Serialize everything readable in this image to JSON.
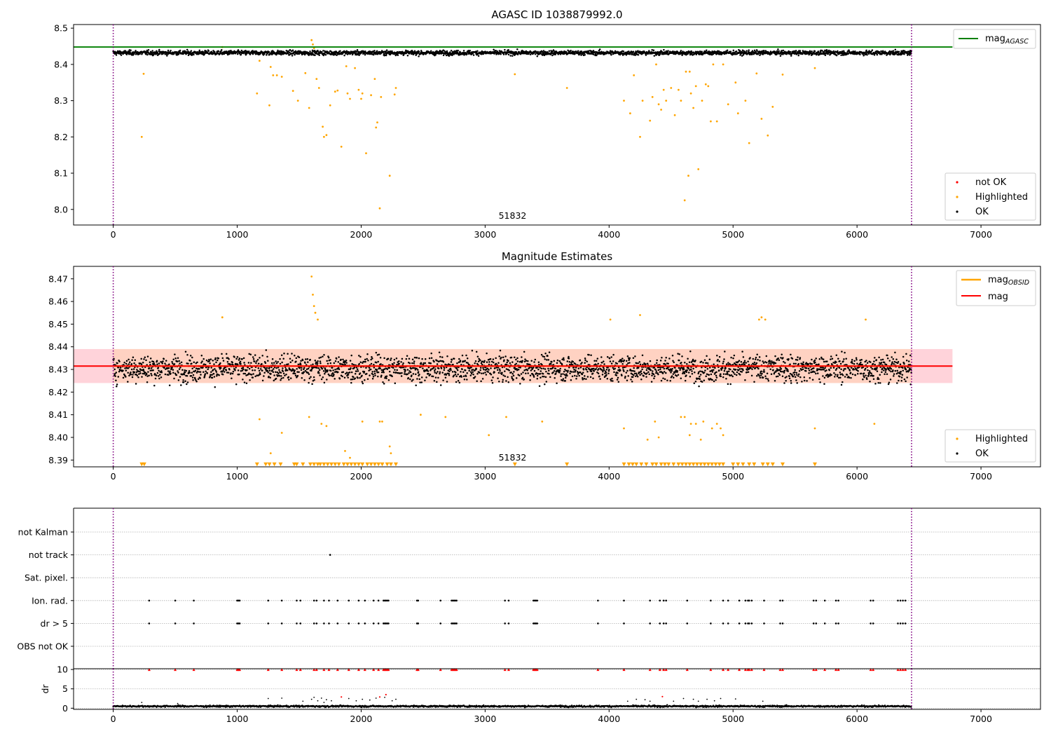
{
  "chart_data": [
    {
      "type": "scatter",
      "title": "AGASC ID 1038879992.0",
      "xlim": [
        -320,
        7480
      ],
      "ylim": [
        7.957,
        8.51
      ],
      "x_ticks": [
        0,
        1000,
        2000,
        3000,
        4000,
        5000,
        6000,
        7000
      ],
      "y_ticks": [
        8.0,
        8.1,
        8.2,
        8.3,
        8.4,
        8.5
      ],
      "obsid_label": "51832",
      "obsid_boundaries": [
        0,
        6440
      ],
      "reference_line": {
        "name": "mag_AGASC",
        "legend_base": "mag",
        "legend_sub": "AGASC",
        "value": 8.448,
        "x_range": [
          -320,
          6770
        ],
        "color": "#008000"
      },
      "series": [
        {
          "name": "not OK",
          "color": "#ff0000",
          "values": []
        },
        {
          "name": "Highlighted",
          "color": "#ffa500",
          "x": [
            230,
            245,
            880,
            1160,
            1180,
            1260,
            1270,
            1290,
            1320,
            1360,
            1450,
            1490,
            1550,
            1580,
            1600,
            1610,
            1620,
            1640,
            1660,
            1690,
            1700,
            1720,
            1750,
            1790,
            1810,
            1840,
            1880,
            1890,
            1910,
            1950,
            1980,
            2000,
            2010,
            2040,
            2080,
            2110,
            2120,
            2130,
            2150,
            2160,
            2230,
            2270,
            2280,
            3240,
            3660,
            4120,
            4170,
            4200,
            4250,
            4270,
            4330,
            4350,
            4380,
            4400,
            4420,
            4440,
            4460,
            4500,
            4530,
            4560,
            4580,
            4610,
            4620,
            4640,
            4650,
            4660,
            4680,
            4700,
            4720,
            4750,
            4780,
            4800,
            4820,
            4840,
            4870,
            4920,
            4960,
            5020,
            5040,
            5100,
            5130,
            5190,
            5230,
            5280,
            5320,
            5400,
            5660
          ],
          "y": [
            8.2,
            8.374,
            8.448,
            8.32,
            8.41,
            8.287,
            8.393,
            8.37,
            8.37,
            8.366,
            8.327,
            8.3,
            8.376,
            8.28,
            8.467,
            8.455,
            8.445,
            8.36,
            8.335,
            8.228,
            8.2,
            8.205,
            8.287,
            8.325,
            8.328,
            8.173,
            8.395,
            8.32,
            8.305,
            8.39,
            8.33,
            8.305,
            8.32,
            8.155,
            8.315,
            8.36,
            8.226,
            8.24,
            8.003,
            8.31,
            8.093,
            8.317,
            8.335,
            8.373,
            8.335,
            8.3,
            8.265,
            8.37,
            8.2,
            8.3,
            8.245,
            8.31,
            8.4,
            8.29,
            8.275,
            8.33,
            8.3,
            8.335,
            8.26,
            8.33,
            8.3,
            8.025,
            8.38,
            8.093,
            8.38,
            8.32,
            8.28,
            8.34,
            8.111,
            8.3,
            8.345,
            8.34,
            8.243,
            8.4,
            8.243,
            8.4,
            8.29,
            8.35,
            8.265,
            8.3,
            8.183,
            8.375,
            8.25,
            8.204,
            8.283,
            8.372,
            8.39
          ]
        },
        {
          "name": "OK",
          "color": "#000000",
          "band": {
            "center": 8.432,
            "spread": 0.008
          }
        }
      ],
      "legend_order": [
        "not OK",
        "Highlighted",
        "OK"
      ],
      "legend_placement": "lower-right"
    },
    {
      "type": "scatter",
      "title": "Magnitude Estimates",
      "xlim": [
        -320,
        7480
      ],
      "ylim": [
        8.387,
        8.4755
      ],
      "x_ticks": [
        0,
        1000,
        2000,
        3000,
        4000,
        5000,
        6000,
        7000
      ],
      "y_ticks": [
        8.39,
        8.4,
        8.41,
        8.42,
        8.43,
        8.44,
        8.45,
        8.46,
        8.47
      ],
      "obsid_label": "51832",
      "obsid_boundaries": [
        0,
        6440
      ],
      "lines": [
        {
          "name": "mag_OBSID",
          "legend_base": "mag",
          "legend_sub": "OBSID",
          "color": "#ffa500",
          "value": 8.4315,
          "x_range": [
            0,
            6440
          ]
        },
        {
          "name": "mag",
          "legend_base": "mag",
          "legend_sub": "",
          "color": "#ff0000",
          "value": 8.4315,
          "x_range": [
            -320,
            6770
          ]
        }
      ],
      "bands": [
        {
          "color": "#ffb6c1",
          "lower": 8.424,
          "upper": 8.439
        },
        {
          "color": "#ffd2b3",
          "lower": 8.424,
          "upper": 8.439
        }
      ],
      "series": [
        {
          "name": "Highlighted",
          "color": "#ffa500",
          "x": [
            880,
            1180,
            1270,
            1360,
            1580,
            1600,
            1610,
            1620,
            1630,
            1650,
            1680,
            1720,
            1870,
            1910,
            2010,
            2150,
            2170,
            2230,
            2240,
            2480,
            2680,
            3030,
            3170,
            3460,
            4010,
            4120,
            4250,
            4310,
            4370,
            4400,
            4580,
            4610,
            4650,
            4660,
            4700,
            4740,
            4760,
            4830,
            4870,
            4900,
            4920,
            5210,
            5230,
            5260,
            5660,
            6070,
            6140
          ],
          "y": [
            8.453,
            8.408,
            8.393,
            8.402,
            8.409,
            8.471,
            8.463,
            8.458,
            8.455,
            8.452,
            8.406,
            8.405,
            8.394,
            8.391,
            8.407,
            8.407,
            8.407,
            8.396,
            8.393,
            8.41,
            8.409,
            8.401,
            8.409,
            8.407,
            8.452,
            8.404,
            8.454,
            8.399,
            8.407,
            8.4,
            8.409,
            8.409,
            8.401,
            8.406,
            8.406,
            8.399,
            8.407,
            8.404,
            8.406,
            8.404,
            8.401,
            8.452,
            8.453,
            8.452,
            8.404,
            8.452,
            8.406
          ],
          "clipped_markers_x": [
            230,
            250,
            1160,
            1230,
            1260,
            1300,
            1350,
            1460,
            1480,
            1530,
            1590,
            1620,
            1650,
            1670,
            1700,
            1730,
            1760,
            1790,
            1820,
            1860,
            1890,
            1920,
            1950,
            1980,
            2010,
            2050,
            2080,
            2110,
            2140,
            2170,
            2210,
            2240,
            2280,
            3240,
            3660,
            4120,
            4160,
            4190,
            4220,
            4260,
            4300,
            4350,
            4380,
            4420,
            4450,
            4480,
            4520,
            4560,
            4590,
            4620,
            4650,
            4680,
            4710,
            4740,
            4770,
            4800,
            4830,
            4860,
            4890,
            4920,
            5000,
            5040,
            5080,
            5130,
            5170,
            5240,
            5280,
            5320,
            5400,
            5660
          ]
        },
        {
          "name": "OK",
          "color": "#000000",
          "band": {
            "center": 8.4305,
            "spread": 0.0075
          }
        }
      ],
      "legend_order": [
        "Highlighted",
        "OK"
      ],
      "legend_placement": "lower-right"
    },
    {
      "type": "scatter",
      "title": "",
      "xlim": [
        -320,
        7480
      ],
      "x_ticks": [
        0,
        1000,
        2000,
        3000,
        4000,
        5000,
        6000,
        7000
      ],
      "obsid_boundaries": [
        0,
        6440
      ],
      "flag_rows": [
        "not Kalman",
        "not track",
        "Sat. pixel.",
        "Ion. rad.",
        "dr > 5",
        "OBS not OK"
      ],
      "flag_events": {
        "not track": [
          1750
        ],
        "Ion. rad.": [
          290,
          500,
          650,
          1000,
          1010,
          1020,
          1250,
          1360,
          1480,
          1510,
          1620,
          1640,
          1700,
          1740,
          1810,
          1900,
          1980,
          2030,
          2100,
          2140,
          2180,
          2190,
          2200,
          2210,
          2220,
          2450,
          2460,
          2640,
          2730,
          2740,
          2750,
          2760,
          2770,
          3160,
          3190,
          3390,
          3400,
          3410,
          3420,
          3910,
          4120,
          4330,
          4410,
          4440,
          4460,
          4630,
          4820,
          4920,
          4960,
          5050,
          5100,
          5120,
          5130,
          5150,
          5250,
          5380,
          5400,
          5650,
          5670,
          5740,
          5830,
          5850,
          6110,
          6130,
          6330,
          6350,
          6370,
          6390
        ],
        "dr > 5": [
          290,
          500,
          650,
          1000,
          1010,
          1020,
          1250,
          1360,
          1480,
          1510,
          1620,
          1640,
          1700,
          1740,
          1810,
          1900,
          1980,
          2030,
          2100,
          2140,
          2180,
          2190,
          2200,
          2210,
          2220,
          2450,
          2460,
          2640,
          2730,
          2740,
          2750,
          2760,
          2770,
          3160,
          3190,
          3390,
          3400,
          3410,
          3420,
          3910,
          4120,
          4330,
          4410,
          4440,
          4460,
          4630,
          4820,
          4920,
          4960,
          5050,
          5100,
          5120,
          5130,
          5150,
          5250,
          5380,
          5400,
          5650,
          5670,
          5740,
          5830,
          5850,
          6110,
          6130,
          6330,
          6350,
          6370,
          6390
        ]
      }
    },
    {
      "type": "scatter",
      "title": "",
      "ylabel": "dr",
      "xlim": [
        -320,
        7480
      ],
      "ylim": [
        -0.3,
        10.2
      ],
      "x_ticks": [
        0,
        1000,
        2000,
        3000,
        4000,
        5000,
        6000,
        7000
      ],
      "y_ticks": [
        0,
        5,
        10
      ],
      "obsid_boundaries": [
        0,
        6440
      ],
      "clipped_markers": {
        "color": "#ff0000",
        "y": 10,
        "x": [
          290,
          500,
          650,
          1000,
          1010,
          1020,
          1250,
          1360,
          1480,
          1510,
          1620,
          1640,
          1700,
          1740,
          1810,
          1900,
          1980,
          2030,
          2100,
          2140,
          2180,
          2190,
          2200,
          2210,
          2220,
          2450,
          2460,
          2640,
          2730,
          2740,
          2750,
          2760,
          2770,
          3160,
          3190,
          3390,
          3400,
          3410,
          3420,
          3910,
          4120,
          4330,
          4410,
          4440,
          4460,
          4630,
          4820,
          4920,
          4960,
          5050,
          5100,
          5120,
          5130,
          5150,
          5250,
          5380,
          5400,
          5650,
          5670,
          5740,
          5830,
          5850,
          6110,
          6130,
          6330,
          6350,
          6370,
          6390
        ]
      },
      "series": [
        {
          "name": "not OK",
          "color": "#ff0000",
          "x": [
            1840,
            2150,
            2200,
            4430
          ],
          "y": [
            2.9,
            2.9,
            3.5,
            3.0
          ]
        },
        {
          "name": "OK",
          "color": "#000000",
          "x": [
            230,
            520,
            1250,
            1360,
            1530,
            1600,
            1620,
            1650,
            1680,
            1700,
            1720,
            1760,
            1900,
            1960,
            2010,
            2070,
            2120,
            2190,
            2250,
            2280,
            4150,
            4220,
            4290,
            4330,
            4520,
            4600,
            4680,
            4720,
            4790,
            4850,
            4900,
            5020,
            5240
          ],
          "y": [
            1.5,
            1.2,
            2.5,
            2.6,
            1.8,
            2.3,
            2.8,
            1.9,
            2.6,
            1.5,
            2.2,
            1.9,
            2.5,
            1.9,
            2.3,
            2.1,
            2.6,
            2.8,
            1.9,
            2.3,
            1.8,
            2.3,
            2.2,
            1.8,
            1.8,
            2.5,
            2.3,
            1.8,
            2.3,
            1.9,
            2.5,
            2.4,
            1.8
          ],
          "band": {
            "center": 0.5,
            "spread": 0.3
          }
        }
      ]
    }
  ]
}
